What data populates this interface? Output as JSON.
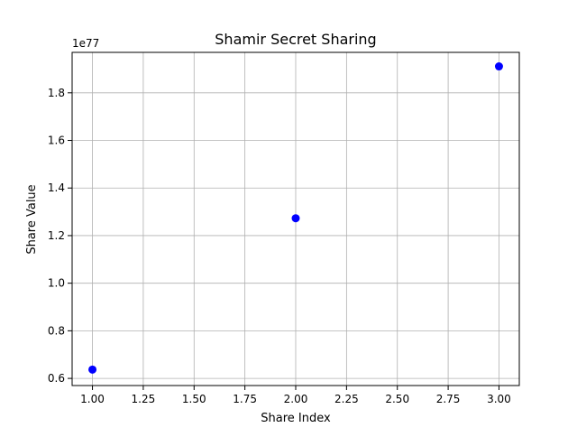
{
  "chart_data": {
    "type": "scatter",
    "title": "Shamir Secret Sharing",
    "xlabel": "Share Index",
    "ylabel": "Share Value",
    "y_offset_label": "1e77",
    "xlim": [
      0.9,
      3.1
    ],
    "ylim": [
      0.57,
      1.97
    ],
    "grid": true,
    "x_ticks": [
      1.0,
      1.25,
      1.5,
      1.75,
      2.0,
      2.25,
      2.5,
      2.75,
      3.0
    ],
    "x_tick_labels": [
      "1.00",
      "1.25",
      "1.50",
      "1.75",
      "2.00",
      "2.25",
      "2.50",
      "2.75",
      "3.00"
    ],
    "y_ticks": [
      0.6,
      0.8,
      1.0,
      1.2,
      1.4,
      1.6,
      1.8
    ],
    "y_tick_labels": [
      "0.6",
      "0.8",
      "1.0",
      "1.2",
      "1.4",
      "1.6",
      "1.8"
    ],
    "series": [
      {
        "color": "#0000ff",
        "x": [
          1,
          2,
          3
        ],
        "y": [
          0.637,
          1.273,
          1.911
        ]
      }
    ]
  }
}
